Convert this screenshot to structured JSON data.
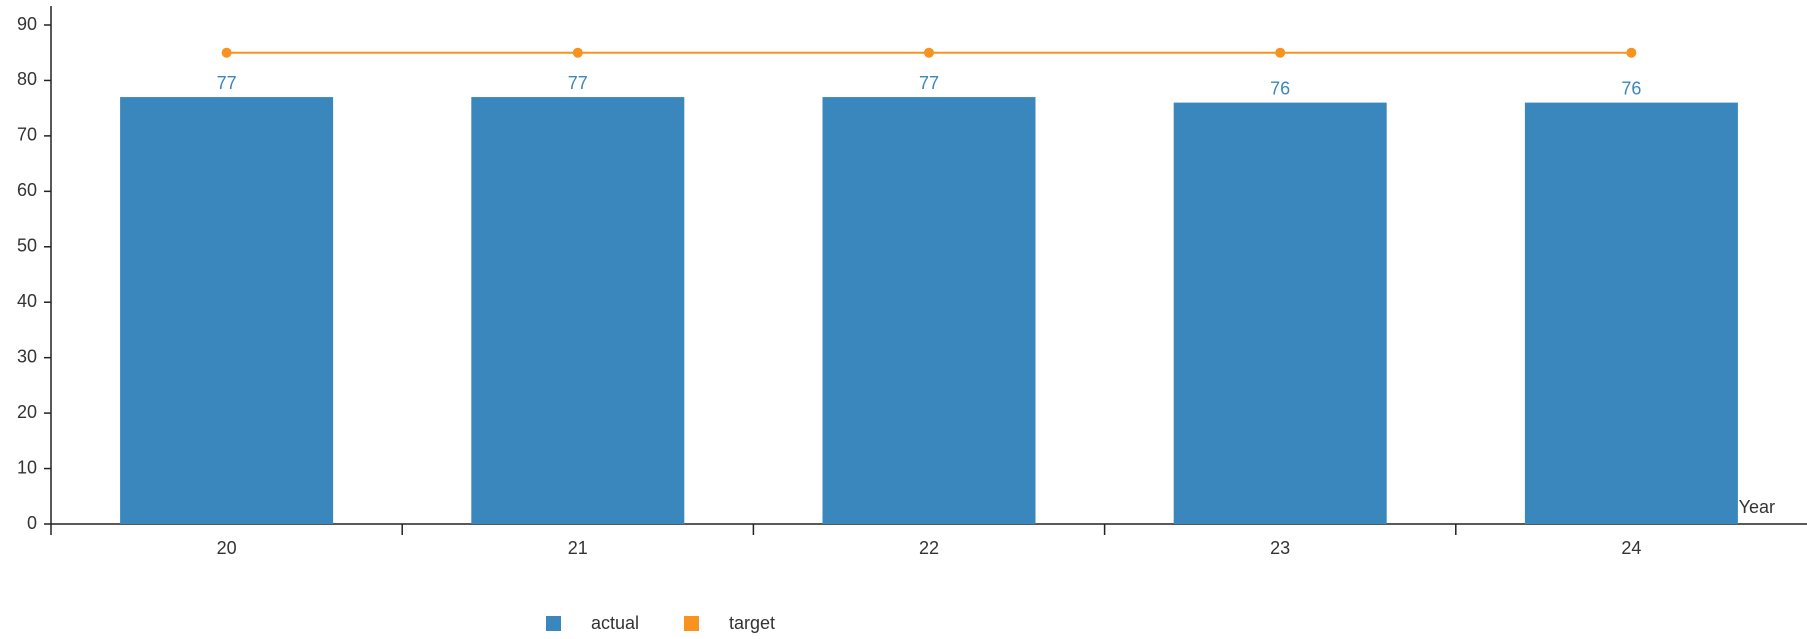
{
  "chart_data": {
    "type": "bar",
    "x_label": "Year",
    "categories": [
      "20",
      "21",
      "22",
      "23",
      "24"
    ],
    "series": [
      {
        "name": "actual",
        "type": "bar",
        "color": "#3a87bd",
        "values": [
          77,
          77,
          77,
          76,
          76
        ]
      },
      {
        "name": "target",
        "type": "line",
        "color": "#f7931e",
        "values": [
          85,
          85,
          85,
          85,
          85
        ]
      }
    ],
    "ylim": [
      0,
      90
    ],
    "yticks": [
      0,
      10,
      20,
      30,
      40,
      50,
      60,
      70,
      80,
      90
    ]
  }
}
